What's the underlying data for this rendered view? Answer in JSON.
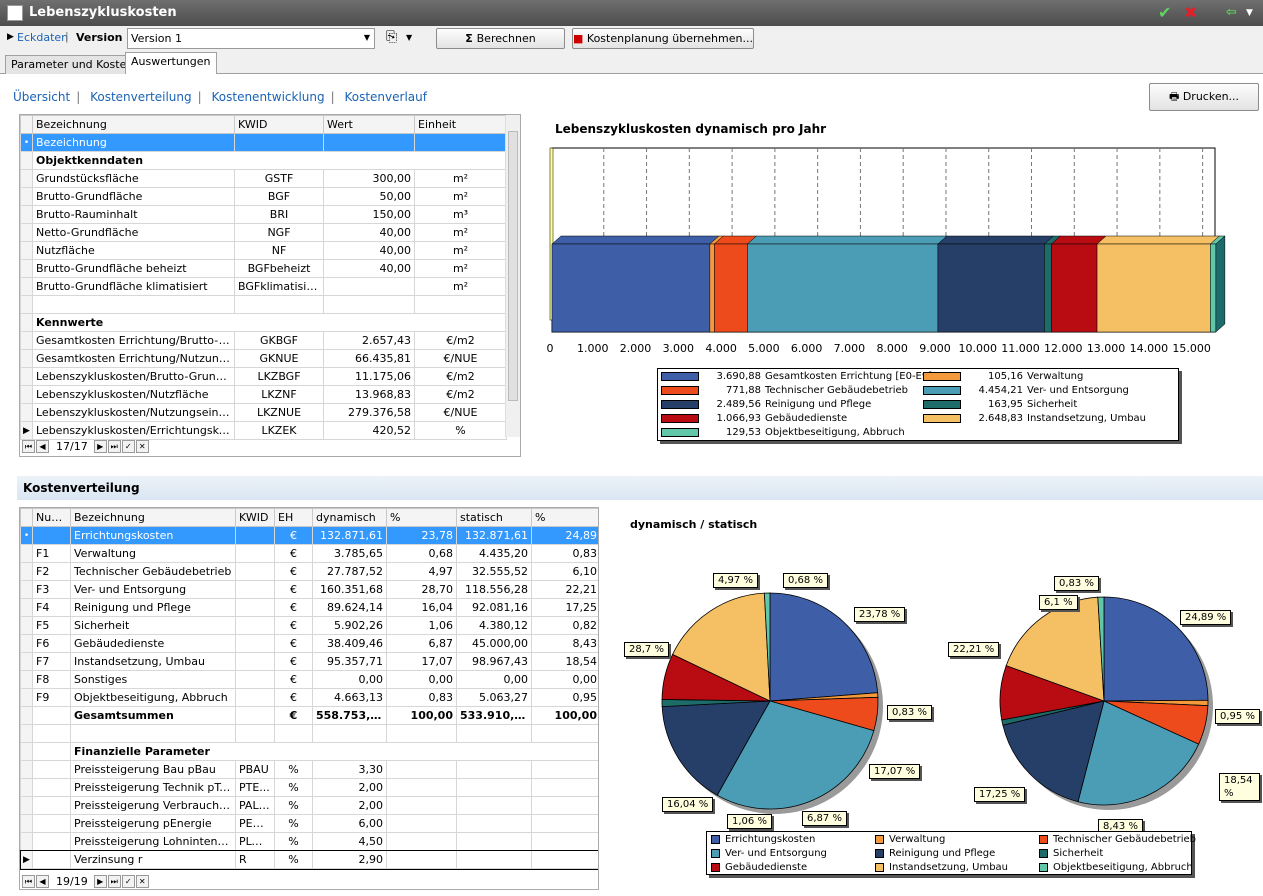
{
  "window": {
    "title": "Lebenszykluskosten"
  },
  "toolbar": {
    "eckdaten": "Eckdaten",
    "version_label": "Version",
    "version_value": "Version 1",
    "calc_label": "Berechnen",
    "adopt_label": "Kostenplanung übernehmen...",
    "print_label": "Drucken..."
  },
  "tabs": [
    {
      "label": "Parameter und Kosten"
    },
    {
      "label": "Auswertungen"
    }
  ],
  "subnav": [
    "Übersicht",
    "Kostenverteilung",
    "Kostenentwicklung",
    "Kostenverlauf"
  ],
  "top_grid": {
    "headers": [
      "Bezeichnung",
      "KWID",
      "Wert",
      "Einheit"
    ],
    "edit_value": "Bezeichnung",
    "group1": "Objektkenndaten",
    "rows1": [
      [
        "Grundstücksfläche",
        "GSTF",
        "300,00",
        "m²"
      ],
      [
        "Brutto-Grundfläche",
        "BGF",
        "50,00",
        "m²"
      ],
      [
        "Brutto-Rauminhalt",
        "BRI",
        "150,00",
        "m³"
      ],
      [
        "Netto-Grundfläche",
        "NGF",
        "40,00",
        "m²"
      ],
      [
        "Nutzfläche",
        "NF",
        "40,00",
        "m²"
      ],
      [
        "Brutto-Grundfläche beheizt",
        "BGFbeheizt",
        "40,00",
        "m²"
      ],
      [
        "Brutto-Grundfläche klimatisiert",
        "BGFklimatisiert",
        "",
        "m²"
      ]
    ],
    "group2": "Kennwerte",
    "rows2": [
      [
        "Gesamtkosten Errichtung/Brutto-Grun...",
        "GKBGF",
        "2.657,43",
        "€/m2"
      ],
      [
        "Gesamtkosten Errichtung/Nutzungsein...",
        "GKNUE",
        "66.435,81",
        "€/NUE"
      ],
      [
        "Lebenszykluskosten/Brutto-Grundfläche",
        "LKZBGF",
        "11.175,06",
        "€/m2"
      ],
      [
        "Lebenszykluskosten/Nutzfläche",
        "LKZNF",
        "13.968,83",
        "€/m2"
      ],
      [
        "Lebenszykluskosten/Nutzungseinheit",
        "LKZNUE",
        "279.376,58",
        "€/NUE"
      ],
      [
        "Lebenszykluskosten/Errichtungskosten",
        "LKZEK",
        "420,52",
        "%"
      ]
    ],
    "record": "17/17"
  },
  "section_title": "Kostenverteilung",
  "bottom_grid": {
    "headers": [
      "Numme",
      "Bezeichnung",
      "KWID",
      "EH",
      "dynamisch",
      "%",
      "statisch",
      "%"
    ],
    "rows": [
      [
        "",
        "Errichtungskosten",
        "",
        "€",
        "132.871,61",
        "23,78",
        "132.871,61",
        "24,89"
      ],
      [
        "F1",
        "Verwaltung",
        "",
        "€",
        "3.785,65",
        "0,68",
        "4.435,20",
        "0,83"
      ],
      [
        "F2",
        "Technischer Gebäudebetrieb",
        "",
        "€",
        "27.787,52",
        "4,97",
        "32.555,52",
        "6,10"
      ],
      [
        "F3",
        "Ver- und Entsorgung",
        "",
        "€",
        "160.351,68",
        "28,70",
        "118.556,28",
        "22,21"
      ],
      [
        "F4",
        "Reinigung und Pflege",
        "",
        "€",
        "89.624,14",
        "16,04",
        "92.081,16",
        "17,25"
      ],
      [
        "F5",
        "Sicherheit",
        "",
        "€",
        "5.902,26",
        "1,06",
        "4.380,12",
        "0,82"
      ],
      [
        "F6",
        "Gebäudedienste",
        "",
        "€",
        "38.409,46",
        "6,87",
        "45.000,00",
        "8,43"
      ],
      [
        "F7",
        "Instandsetzung, Umbau",
        "",
        "€",
        "95.357,71",
        "17,07",
        "98.967,43",
        "18,54"
      ],
      [
        "F8",
        "Sonstiges",
        "",
        "€",
        "0,00",
        "0,00",
        "0,00",
        "0,00"
      ],
      [
        "F9",
        "Objektbeseitigung, Abbruch",
        "",
        "€",
        "4.663,13",
        "0,83",
        "5.063,27",
        "0,95"
      ]
    ],
    "total": [
      "",
      "Gesamtsummen",
      "",
      "€",
      "558.753,16",
      "100,00",
      "533.910,59",
      "100,00"
    ],
    "group": "Finanzielle Parameter",
    "params": [
      [
        "Preissteigerung Bau pBau",
        "PBAU",
        "%",
        "3,30"
      ],
      [
        "Preissteigerung Technik pTec...",
        "PTE...",
        "%",
        "2,00"
      ],
      [
        "Preissteigerung Verbrauchspr...",
        "PALLG",
        "%",
        "2,00"
      ],
      [
        "Preissteigerung pEnergie",
        "PEN...",
        "%",
        "6,00"
      ],
      [
        "Preissteigerung Lohnintensiv ...",
        "PLOHN",
        "%",
        "4,50"
      ],
      [
        "Verzinsung r",
        "R",
        "%",
        "2,90"
      ]
    ],
    "record": "19/19"
  },
  "chart_data": [
    {
      "type": "bar",
      "title": "Lebenszykluskosten dynamisch pro Jahr",
      "orientation": "horizontal",
      "stacked": true,
      "xlim": [
        0,
        15500
      ],
      "ticks": [
        "0",
        "1.000",
        "2.000",
        "3.000",
        "4.000",
        "5.000",
        "6.000",
        "7.000",
        "8.000",
        "9.000",
        "10.000",
        "11.000",
        "12.000",
        "13.000",
        "14.000",
        "15.000"
      ],
      "series": [
        {
          "name": "Gesamtkosten Errichtung [E0-E9]",
          "value": 3690.88,
          "label": "3.690,88",
          "color": "#3e5fa7"
        },
        {
          "name": "Verwaltung",
          "value": 105.16,
          "label": "105,16",
          "color": "#f29a3c"
        },
        {
          "name": "Technischer Gebäudebetrieb",
          "value": 771.88,
          "label": "771,88",
          "color": "#ee4b1c"
        },
        {
          "name": "Ver- und Entsorgung",
          "value": 4454.21,
          "label": "4.454,21",
          "color": "#4a9db5"
        },
        {
          "name": "Reinigung und Pflege",
          "value": 2489.56,
          "label": "2.489,56",
          "color": "#263f69"
        },
        {
          "name": "Sicherheit",
          "value": 163.95,
          "label": "163,95",
          "color": "#1e6c6a"
        },
        {
          "name": "Gebäudedienste",
          "value": 1066.93,
          "label": "1.066,93",
          "color": "#b80c12"
        },
        {
          "name": "Instandsetzung, Umbau",
          "value": 2648.83,
          "label": "2.648,83",
          "color": "#f5bf63"
        },
        {
          "name": "Objektbeseitigung, Abbruch",
          "value": 129.53,
          "label": "129,53",
          "color": "#62c6a8"
        }
      ]
    },
    {
      "type": "pie",
      "title": "dynamisch / statisch",
      "categories": [
        "Errichtungskosten",
        "Verwaltung",
        "Technischer Gebäudebetrieb",
        "Ver- und Entsorgung",
        "Reinigung und Pflege",
        "Sicherheit",
        "Gebäudedienste",
        "Instandsetzung, Umbau",
        "Objektbeseitigung, Abbruch"
      ],
      "colors": [
        "#3e5fa7",
        "#f29a3c",
        "#ee4b1c",
        "#4a9db5",
        "#263f69",
        "#1e6c6a",
        "#b80c12",
        "#f5bf63",
        "#62c6a8"
      ],
      "series": [
        {
          "name": "dynamisch",
          "values": [
            23.78,
            0.68,
            4.97,
            28.7,
            16.04,
            1.06,
            6.87,
            17.07,
            0.83
          ],
          "labels": [
            "23,78 %",
            "0,68 %",
            "4,97 %",
            "28,7 %",
            "16,04 %",
            "1,06 %",
            "6,87 %",
            "17,07 %",
            "0,83 %"
          ]
        },
        {
          "name": "statisch",
          "values": [
            24.89,
            0.83,
            6.1,
            22.21,
            17.25,
            0.82,
            8.43,
            18.54,
            0.95
          ],
          "labels": [
            "24,89 %",
            "0,83 %",
            "6,1 %",
            "22,21 %",
            "17,25 %",
            "0,82 %",
            "8,43 %",
            "18,54 %",
            "0,95 %"
          ]
        }
      ]
    }
  ]
}
